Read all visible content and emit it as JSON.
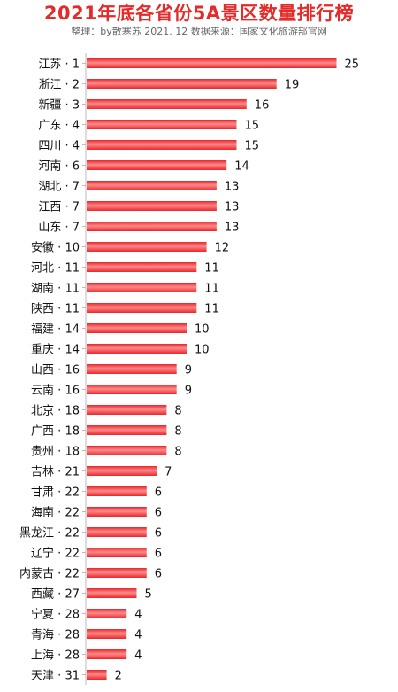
{
  "header": {
    "title": "2021年底各省份5A景区数量排行榜",
    "subtitle": "整理：by散寒苏  2021. 12  数据来源：国家文化旅游部官网"
  },
  "colors": {
    "bar": "#e8262b",
    "bar_highlight": "#ff8a8a",
    "title": "#e52a2a",
    "axis": "#bbbbbb",
    "text": "#111111"
  },
  "chart_data": {
    "type": "bar",
    "orientation": "horizontal",
    "title": "2021年底各省份5A景区数量排行榜",
    "categories": [
      "江苏 · 1",
      "浙江 · 2",
      "新疆 · 3",
      "广东 · 4",
      "四川 · 4",
      "河南 · 6",
      "湖北 · 7",
      "江西 · 7",
      "山东 · 7",
      "安徽 · 10",
      "河北 · 11",
      "湖南 · 11",
      "陕西 · 11",
      "福建 · 14",
      "重庆 · 14",
      "山西 · 16",
      "云南 · 16",
      "北京 · 18",
      "广西 · 18",
      "贵州 · 18",
      "吉林 · 21",
      "甘肃 · 22",
      "海南 · 22",
      "黑龙江 · 22",
      "辽宁 · 22",
      "内蒙古 · 22",
      "西藏 · 27",
      "宁夏 · 28",
      "青海 · 28",
      "上海 · 28",
      "天津 · 31"
    ],
    "values": [
      25,
      19,
      16,
      15,
      15,
      14,
      13,
      13,
      13,
      12,
      11,
      11,
      11,
      10,
      10,
      9,
      9,
      8,
      8,
      8,
      7,
      6,
      6,
      6,
      6,
      6,
      5,
      4,
      4,
      4,
      2
    ],
    "xlabel": "",
    "ylabel": "",
    "xlim": [
      0,
      25
    ],
    "grid": false,
    "legend": "none"
  }
}
